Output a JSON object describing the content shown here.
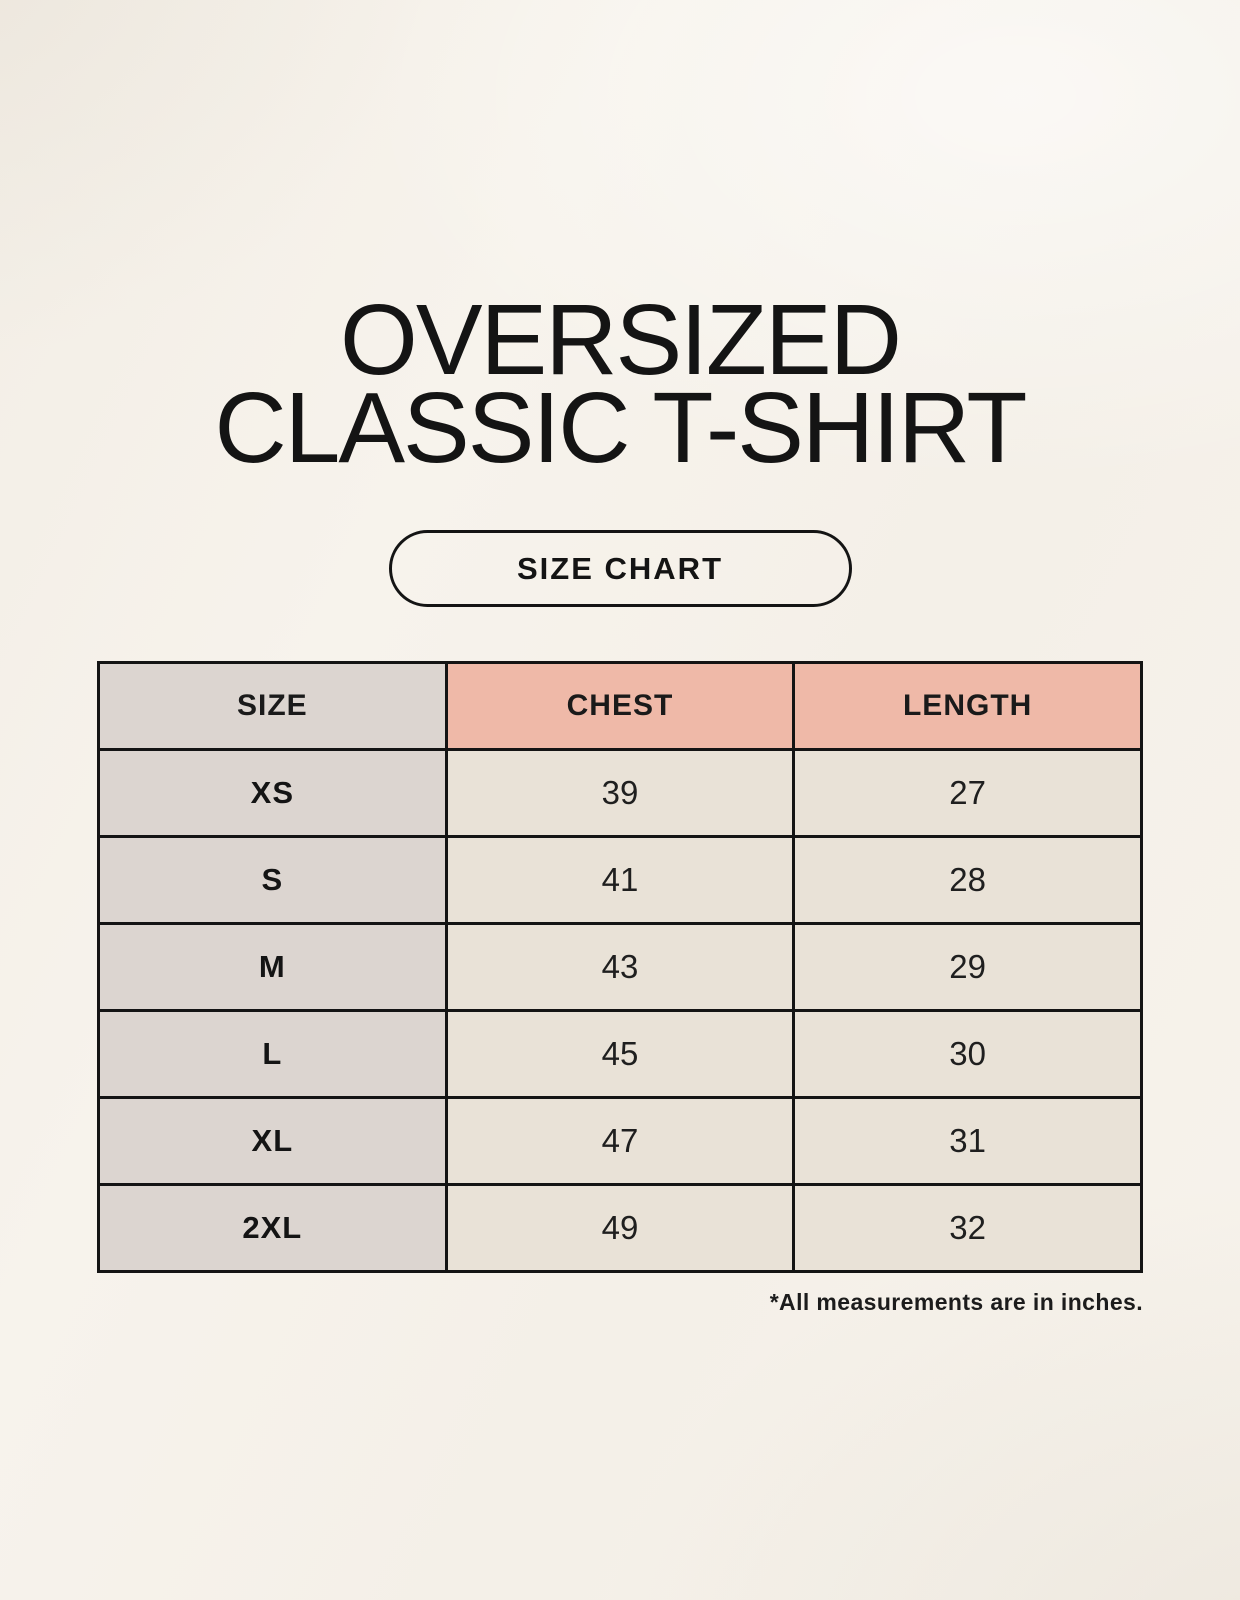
{
  "title": {
    "line1": "OVERSIZED",
    "line2": "CLASSIC T-SHIRT"
  },
  "size_chart_button": {
    "label": "SIZE CHART"
  },
  "table": {
    "headers": [
      "SIZE",
      "CHEST",
      "LENGTH"
    ],
    "rows": [
      [
        "XS",
        "39",
        "27"
      ],
      [
        "S",
        "41",
        "28"
      ],
      [
        "M",
        "43",
        "29"
      ],
      [
        "L",
        "45",
        "30"
      ],
      [
        "XL",
        "47",
        "31"
      ],
      [
        "2XL",
        "49",
        "32"
      ]
    ]
  },
  "footnote": "*All measurements are in inches.",
  "chart_data": {
    "type": "table",
    "title": "OVERSIZED CLASSIC T-SHIRT — SIZE CHART",
    "columns": [
      "SIZE",
      "CHEST",
      "LENGTH"
    ],
    "rows": [
      {
        "SIZE": "XS",
        "CHEST": 39,
        "LENGTH": 27
      },
      {
        "SIZE": "S",
        "CHEST": 41,
        "LENGTH": 28
      },
      {
        "SIZE": "M",
        "CHEST": 43,
        "LENGTH": 29
      },
      {
        "SIZE": "L",
        "CHEST": 45,
        "LENGTH": 30
      },
      {
        "SIZE": "XL",
        "CHEST": 47,
        "LENGTH": 31
      },
      {
        "SIZE": "2XL",
        "CHEST": 49,
        "LENGTH": 32
      }
    ],
    "units": "inches",
    "footnote": "*All measurements are in inches."
  },
  "colors": {
    "background": "#f7f3ec",
    "header_accent_pink": "#efb9a8",
    "size_column_gray": "#dcd5d0",
    "cell_beige": "#e9e2d7",
    "border": "#141414",
    "text": "#1a1a1a"
  }
}
